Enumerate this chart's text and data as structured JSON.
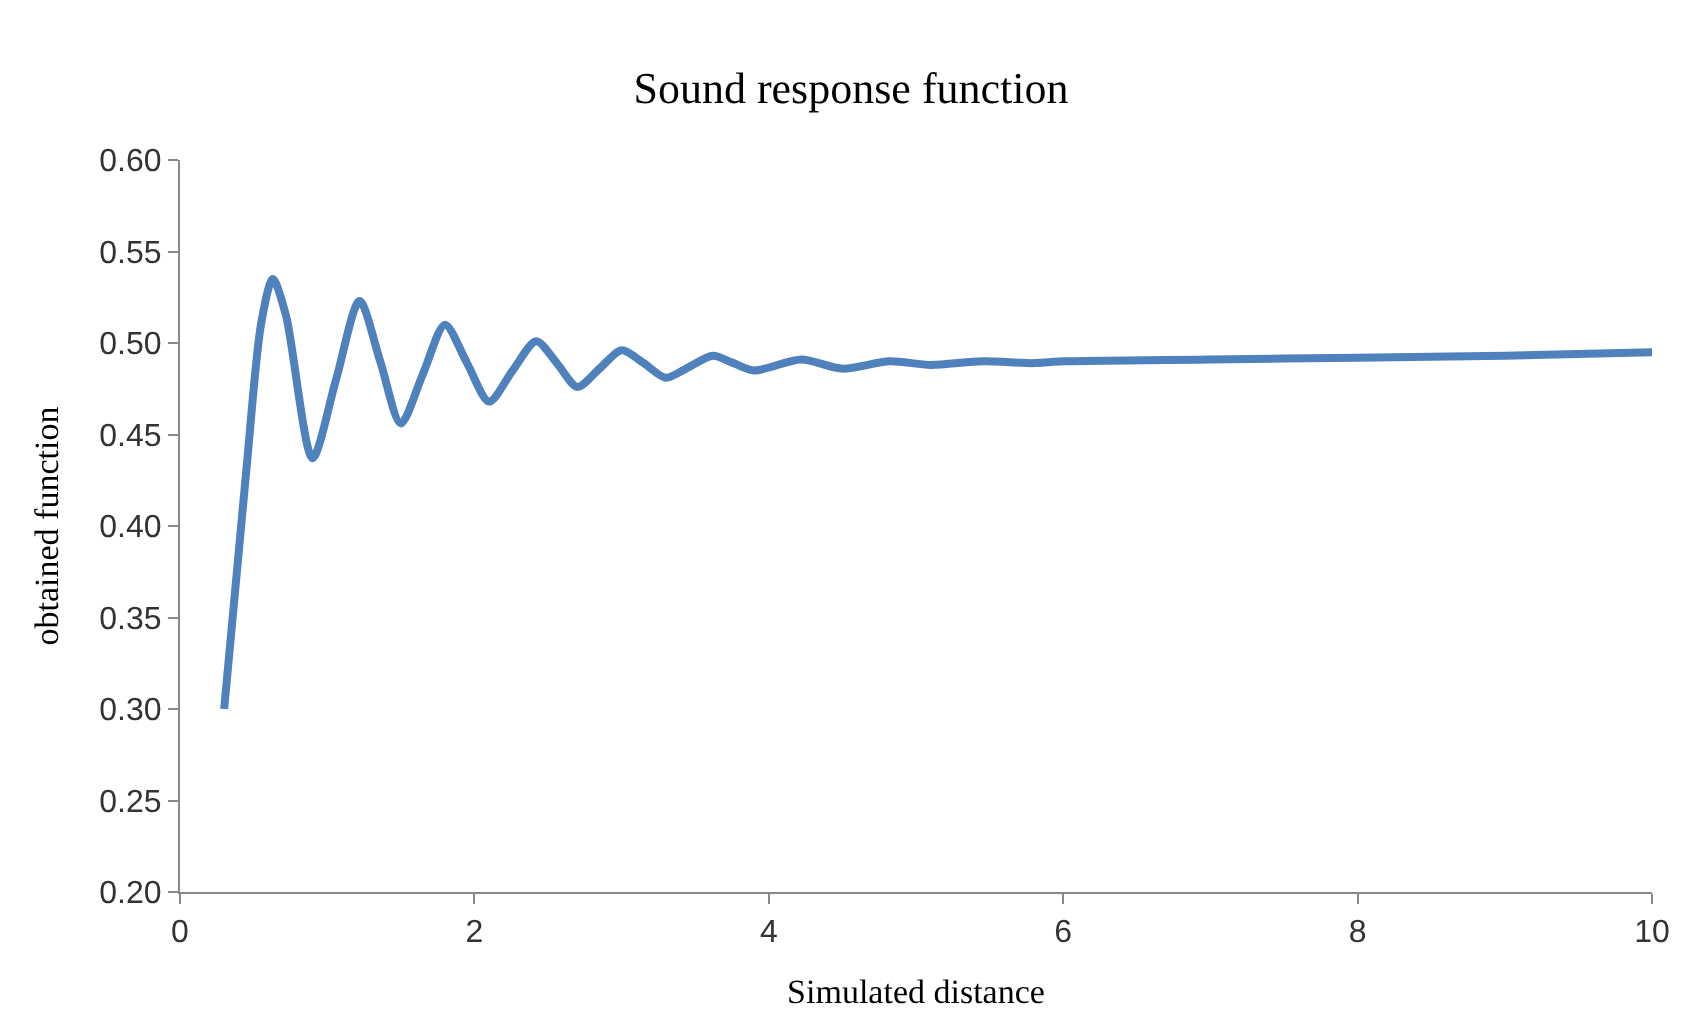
{
  "chart_data": {
    "type": "line",
    "title": "Sound response function",
    "xlabel": "Simulated distance",
    "ylabel": "obtained function",
    "x": [
      0.3,
      0.45,
      0.55,
      0.63,
      0.72,
      0.9,
      1.06,
      1.22,
      1.36,
      1.5,
      1.65,
      1.8,
      1.95,
      2.1,
      2.26,
      2.42,
      2.56,
      2.7,
      2.85,
      3.0,
      3.15,
      3.3,
      3.46,
      3.62,
      3.76,
      3.9,
      4.22,
      4.5,
      4.82,
      5.1,
      5.45,
      5.8,
      6.0,
      7.0,
      8.0,
      9.0,
      10.0
    ],
    "series": [
      {
        "color": "#4f81bd",
        "values": [
          0.3,
          0.43,
          0.51,
          0.535,
          0.515,
          0.437,
          0.48,
          0.523,
          0.49,
          0.456,
          0.483,
          0.51,
          0.489,
          0.468,
          0.485,
          0.501,
          0.489,
          0.476,
          0.486,
          0.496,
          0.489,
          0.481,
          0.487,
          0.493,
          0.489,
          0.485,
          0.491,
          0.486,
          0.49,
          0.488,
          0.49,
          0.489,
          0.49,
          0.491,
          0.492,
          0.493,
          0.495
        ]
      }
    ],
    "xlim": [
      0,
      10
    ],
    "xticks": [
      0,
      2,
      4,
      6,
      8,
      10
    ],
    "ylim": [
      0.2,
      0.6
    ],
    "yticks": [
      {
        "value": 0.2,
        "label": "0.20"
      },
      {
        "value": 0.25,
        "label": "0.25"
      },
      {
        "value": 0.3,
        "label": "0.30"
      },
      {
        "value": 0.35,
        "label": "0.35"
      },
      {
        "value": 0.4,
        "label": "0.40"
      },
      {
        "value": 0.45,
        "label": "0.45"
      },
      {
        "value": 0.5,
        "label": "0.50"
      },
      {
        "value": 0.55,
        "label": "0.55"
      },
      {
        "value": 0.6,
        "label": "0.60"
      }
    ],
    "marker": "none",
    "line_style": "solid"
  }
}
